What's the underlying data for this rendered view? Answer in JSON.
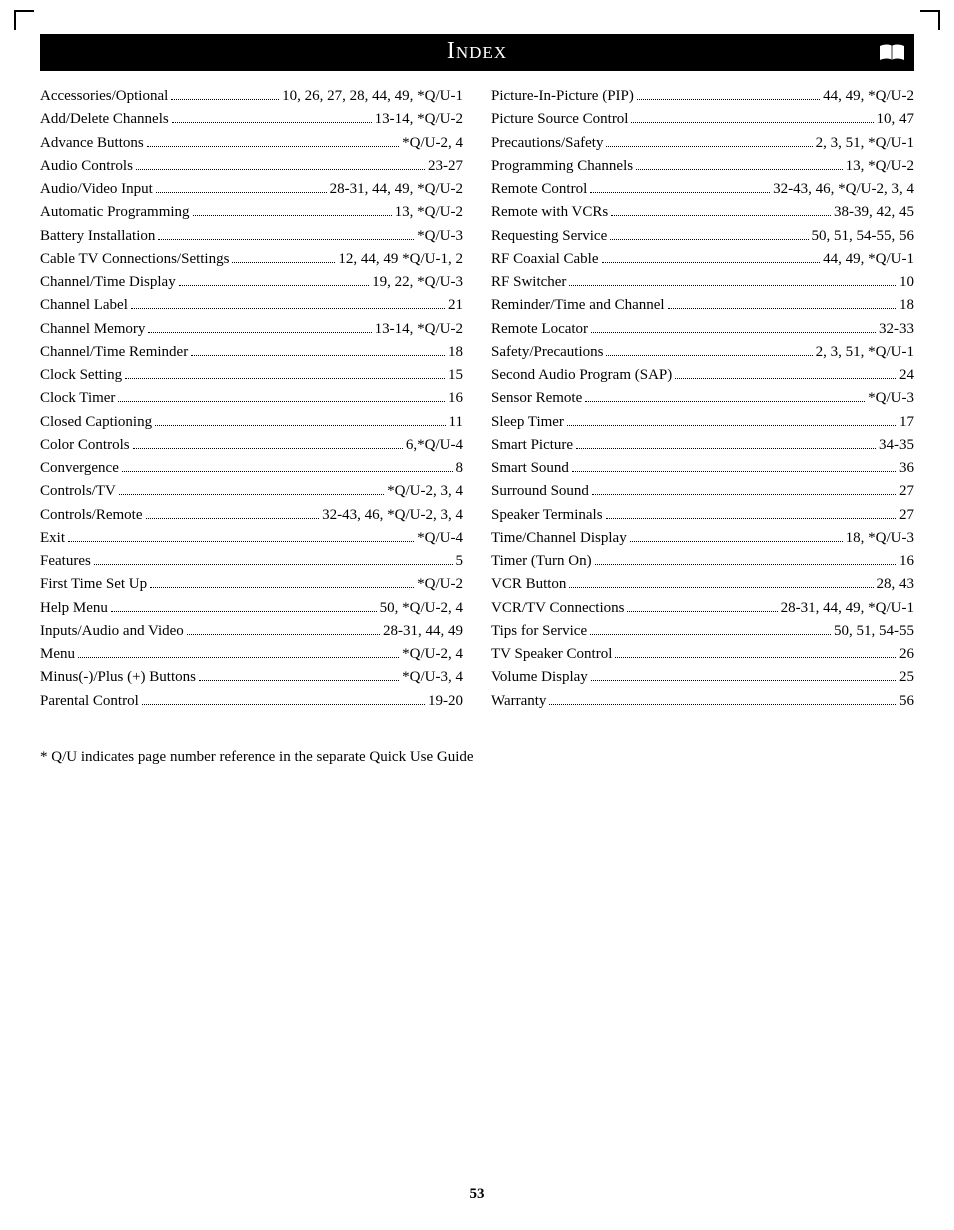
{
  "header": {
    "title": "Index"
  },
  "footnote": "* Q/U indicates page number reference in the separate Quick Use Guide",
  "page_number": "53",
  "columns": {
    "left": [
      {
        "term": "Accessories/Optional",
        "pages": "10, 26, 27, 28, 44, 49, *Q/U-1"
      },
      {
        "term": "Add/Delete Channels",
        "pages": "13-14, *Q/U-2"
      },
      {
        "term": "Advance Buttons",
        "pages": "*Q/U-2, 4"
      },
      {
        "term": "Audio Controls",
        "pages": "23-27"
      },
      {
        "term": "Audio/Video Input",
        "pages": "28-31, 44, 49, *Q/U-2"
      },
      {
        "term": "Automatic Programming",
        "pages": "13, *Q/U-2"
      },
      {
        "term": "Battery Installation",
        "pages": "*Q/U-3"
      },
      {
        "term": "Cable TV Connections/Settings",
        "pages": "12, 44, 49 *Q/U-1, 2"
      },
      {
        "term": "Channel/Time Display",
        "pages": "19, 22, *Q/U-3"
      },
      {
        "term": "Channel Label",
        "pages": "21"
      },
      {
        "term": "Channel Memory",
        "pages": "13-14, *Q/U-2"
      },
      {
        "term": "Channel/Time Reminder",
        "pages": "18"
      },
      {
        "term": "Clock Setting",
        "pages": "15"
      },
      {
        "term": "Clock Timer",
        "pages": "16"
      },
      {
        "term": "Closed Captioning",
        "pages": "11"
      },
      {
        "term": "Color Controls",
        "pages": "6,*Q/U-4"
      },
      {
        "term": "Convergence",
        "pages": "8"
      },
      {
        "term": "Controls/TV",
        "pages": "*Q/U-2, 3, 4"
      },
      {
        "term": "Controls/Remote",
        "pages": "32-43, 46, *Q/U-2, 3, 4"
      },
      {
        "term": "Exit",
        "pages": "*Q/U-4"
      },
      {
        "term": "Features",
        "pages": "5"
      },
      {
        "term": "First Time Set Up",
        "pages": "*Q/U-2"
      },
      {
        "term": "Help Menu",
        "pages": "50, *Q/U-2, 4"
      },
      {
        "term": "Inputs/Audio and Video",
        "pages": "28-31, 44, 49"
      },
      {
        "term": "Menu",
        "pages": "*Q/U-2, 4"
      },
      {
        "term": "Minus(-)/Plus (+) Buttons",
        "pages": "*Q/U-3, 4"
      },
      {
        "term": "Parental Control",
        "pages": "19-20"
      }
    ],
    "right": [
      {
        "term": "Picture-In-Picture (PIP)",
        "pages": "44, 49, *Q/U-2"
      },
      {
        "term": "Picture Source Control",
        "pages": "10, 47"
      },
      {
        "term": "Precautions/Safety",
        "pages": "2, 3, 51, *Q/U-1"
      },
      {
        "term": "Programming Channels",
        "pages": "13, *Q/U-2"
      },
      {
        "term": "Remote Control",
        "pages": "32-43, 46, *Q/U-2, 3, 4"
      },
      {
        "term": "Remote with VCRs",
        "pages": "38-39, 42, 45"
      },
      {
        "term": "Requesting Service",
        "pages": " 50, 51, 54-55, 56"
      },
      {
        "term": "RF Coaxial Cable",
        "pages": "44, 49, *Q/U-1"
      },
      {
        "term": "RF Switcher",
        "pages": "10"
      },
      {
        "term": "Reminder/Time and Channel",
        "pages": "18"
      },
      {
        "term": "Remote Locator",
        "pages": "32-33"
      },
      {
        "term": "Safety/Precautions",
        "pages": "2, 3, 51, *Q/U-1"
      },
      {
        "term": "Second Audio Program (SAP)",
        "pages": "24"
      },
      {
        "term": "Sensor Remote",
        "pages": "*Q/U-3"
      },
      {
        "term": "Sleep Timer",
        "pages": "17"
      },
      {
        "term": "Smart Picture",
        "pages": "34-35"
      },
      {
        "term": "Smart Sound",
        "pages": "36"
      },
      {
        "term": "Surround Sound",
        "pages": "27"
      },
      {
        "term": "Speaker Terminals",
        "pages": "27"
      },
      {
        "term": "Time/Channel Display",
        "pages": "18, *Q/U-3"
      },
      {
        "term": "Timer (Turn On)",
        "pages": "16"
      },
      {
        "term": "VCR Button",
        "pages": "28, 43"
      },
      {
        "term": "VCR/TV Connections",
        "pages": "28-31, 44, 49, *Q/U-1"
      },
      {
        "term": "Tips for Service",
        "pages": "50, 51, 54-55"
      },
      {
        "term": "TV Speaker Control",
        "pages": "26"
      },
      {
        "term": "Volume Display",
        "pages": "25"
      },
      {
        "term": "Warranty",
        "pages": "56"
      }
    ]
  }
}
